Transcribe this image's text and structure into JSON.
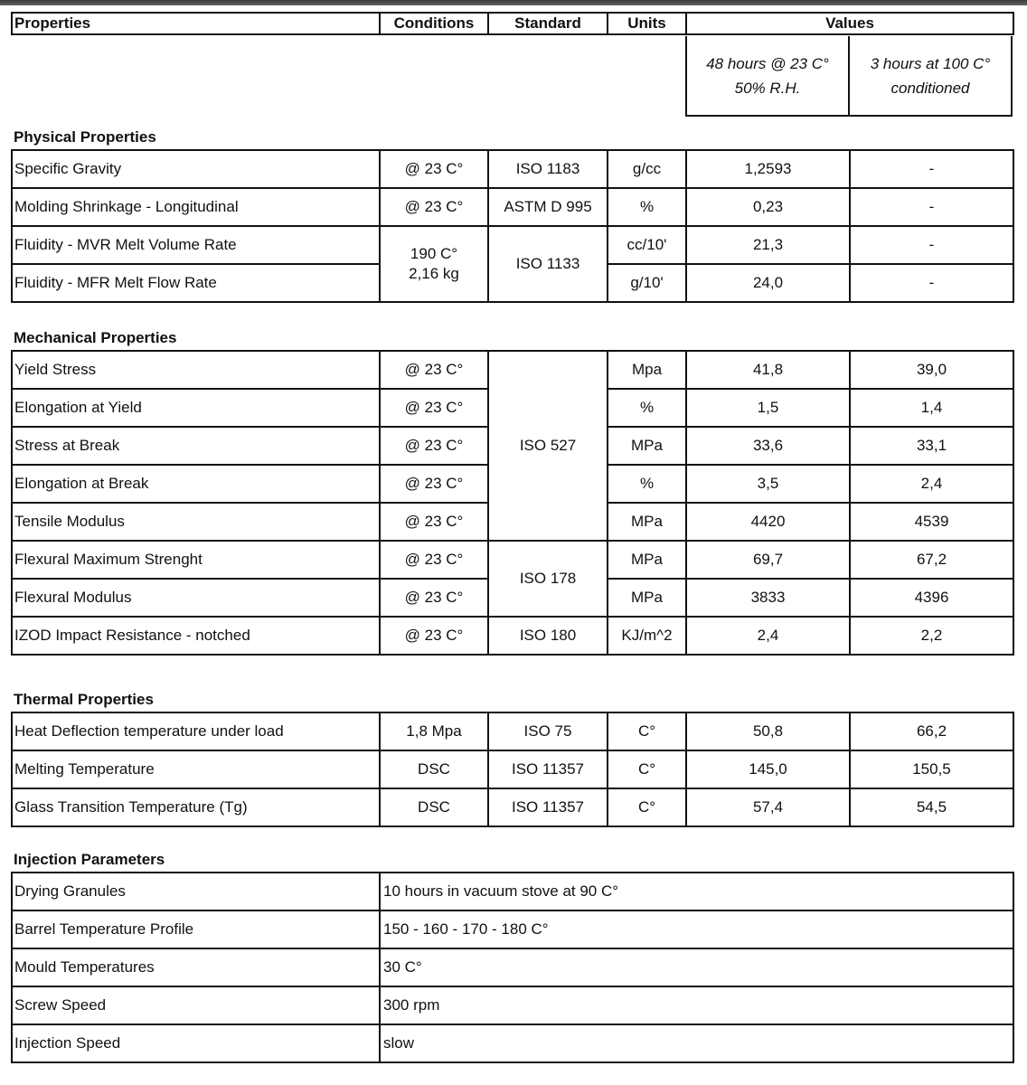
{
  "header": {
    "properties": "Properties",
    "conditions": "Conditions",
    "standard": "Standard",
    "units": "Units",
    "values": "Values",
    "value_col_1": "48 hours @ 23 C°\n50% R.H.",
    "value_col_2": "3 hours at 100 C°\nconditioned"
  },
  "sections": [
    {
      "title": "Physical Properties",
      "rows": [
        {
          "property": "Specific Gravity",
          "condition": "@ 23 C°",
          "standard": "ISO 1183",
          "unit": "g/cc",
          "v1": "1,2593",
          "v2": "-"
        },
        {
          "property": "Molding Shrinkage - Longitudinal",
          "condition": "@ 23 C°",
          "standard": "ASTM D 995",
          "unit": "%",
          "v1": "0,23",
          "v2": "-"
        },
        {
          "property": "Fluidity - MVR Melt Volume Rate",
          "condition": "190 C°\n2,16 kg",
          "condition_rowspan": 2,
          "standard": "ISO 1133",
          "standard_rowspan": 2,
          "unit": "cc/10'",
          "v1": "21,3",
          "v2": "-"
        },
        {
          "property": "Fluidity - MFR Melt Flow Rate",
          "unit": "g/10'",
          "v1": "24,0",
          "v2": "-"
        }
      ]
    },
    {
      "title": "Mechanical Properties",
      "rows": [
        {
          "property": "Yield Stress",
          "condition": "@ 23 C°",
          "standard": "ISO 527",
          "standard_rowspan": 5,
          "unit": "Mpa",
          "v1": "41,8",
          "v2": "39,0"
        },
        {
          "property": "Elongation at Yield",
          "condition": "@ 23 C°",
          "unit": "%",
          "v1": "1,5",
          "v2": "1,4"
        },
        {
          "property": "Stress at Break",
          "condition": "@ 23 C°",
          "unit": "MPa",
          "v1": "33,6",
          "v2": "33,1"
        },
        {
          "property": "Elongation at Break",
          "condition": "@ 23 C°",
          "unit": "%",
          "v1": "3,5",
          "v2": "2,4"
        },
        {
          "property": "Tensile Modulus",
          "condition": "@ 23 C°",
          "unit": "MPa",
          "v1": "4420",
          "v2": "4539"
        },
        {
          "property": "Flexural Maximum Strenght",
          "condition": "@ 23 C°",
          "standard": "ISO 178",
          "standard_rowspan": 2,
          "unit": "MPa",
          "v1": "69,7",
          "v2": "67,2"
        },
        {
          "property": "Flexural Modulus",
          "condition": "@ 23 C°",
          "unit": "MPa",
          "v1": "3833",
          "v2": "4396"
        },
        {
          "property": "IZOD Impact Resistance - notched",
          "condition": "@ 23 C°",
          "standard": "ISO 180",
          "unit": "KJ/m^2",
          "v1": "2,4",
          "v2": "2,2"
        }
      ]
    },
    {
      "title": "Thermal Properties",
      "rows": [
        {
          "property": "Heat Deflection temperature under load",
          "condition": "1,8 Mpa",
          "standard": "ISO 75",
          "unit": "C°",
          "v1": "50,8",
          "v2": "66,2"
        },
        {
          "property": "Melting Temperature",
          "condition": "DSC",
          "standard": "ISO 11357",
          "unit": "C°",
          "v1": "145,0",
          "v2": "150,5"
        },
        {
          "property": "Glass Transition Temperature (Tg)",
          "condition": "DSC",
          "standard": "ISO 11357",
          "unit": "C°",
          "v1": "57,4",
          "v2": "54,5"
        }
      ]
    },
    {
      "title": "Injection Parameters",
      "rows": [
        {
          "property": "Drying Granules",
          "value": "10 hours in vacuum stove at 90 C°"
        },
        {
          "property": "Barrel Temperature Profile",
          "value": "150 - 160 - 170 - 180 C°"
        },
        {
          "property": "Mould Temperatures",
          "value": "30 C°"
        },
        {
          "property": "Screw Speed",
          "value": "300 rpm"
        },
        {
          "property": "Injection Speed",
          "value": "slow"
        }
      ]
    }
  ]
}
